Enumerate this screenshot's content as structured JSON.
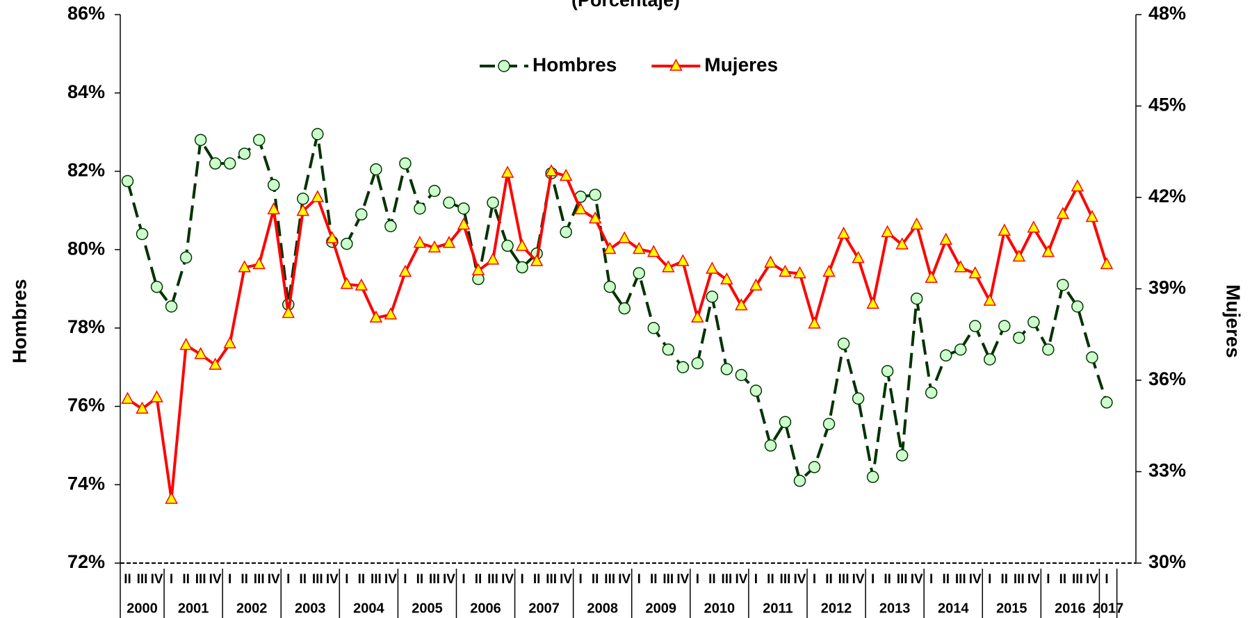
{
  "chart_data": {
    "type": "line",
    "subtitle": "(Porcentaje)",
    "y_label": "Hombres",
    "y2_label": "Mujeres",
    "category_groups": [
      {
        "label": "2000",
        "quarters": [
          "II",
          "III",
          "IV"
        ]
      },
      {
        "label": "2001",
        "quarters": [
          "I",
          "II",
          "III",
          "IV"
        ]
      },
      {
        "label": "2002",
        "quarters": [
          "I",
          "II",
          "III",
          "IV"
        ]
      },
      {
        "label": "2003",
        "quarters": [
          "I",
          "II",
          "III",
          "IV"
        ]
      },
      {
        "label": "2004",
        "quarters": [
          "I",
          "II",
          "III",
          "IV"
        ]
      },
      {
        "label": "2005",
        "quarters": [
          "I",
          "II",
          "III",
          "IV"
        ]
      },
      {
        "label": "2006",
        "quarters": [
          "I",
          "II",
          "III",
          "IV"
        ]
      },
      {
        "label": "2007",
        "quarters": [
          "I",
          "II",
          "III",
          "IV"
        ]
      },
      {
        "label": "2008",
        "quarters": [
          "I",
          "II",
          "III",
          "IV"
        ]
      },
      {
        "label": "2009",
        "quarters": [
          "I",
          "II",
          "III",
          "IV"
        ]
      },
      {
        "label": "2010",
        "quarters": [
          "I",
          "II",
          "III",
          "IV"
        ]
      },
      {
        "label": "2011",
        "quarters": [
          "I",
          "II",
          "III",
          "IV"
        ]
      },
      {
        "label": "2012",
        "quarters": [
          "I",
          "II",
          "III",
          "IV"
        ]
      },
      {
        "label": "2013",
        "quarters": [
          "I",
          "II",
          "III",
          "IV"
        ]
      },
      {
        "label": "2014",
        "quarters": [
          "I",
          "II",
          "III",
          "IV"
        ]
      },
      {
        "label": "2015",
        "quarters": [
          "I",
          "II",
          "III",
          "IV"
        ]
      },
      {
        "label": "2016",
        "quarters": [
          "I",
          "II",
          "III",
          "IV"
        ]
      },
      {
        "label": "2017",
        "quarters": [
          "I"
        ]
      }
    ],
    "series": [
      {
        "name": "Hombres",
        "color": "#003300",
        "marker_color": "#ccffcc",
        "dashed": true,
        "axis": "y",
        "values": [
          81.75,
          80.4,
          79.05,
          78.55,
          79.8,
          82.8,
          82.2,
          82.2,
          82.45,
          82.8,
          81.65,
          78.6,
          81.3,
          82.95,
          80.2,
          80.15,
          80.9,
          82.05,
          80.6,
          82.2,
          81.05,
          81.5,
          81.2,
          81.05,
          79.25,
          81.2,
          80.1,
          79.55,
          79.9,
          81.95,
          80.45,
          81.35,
          81.4,
          79.05,
          78.5,
          79.4,
          78.0,
          77.45,
          77.0,
          77.1,
          78.8,
          76.95,
          76.8,
          76.4,
          75.0,
          75.6,
          74.1,
          74.45,
          75.55,
          77.6,
          76.2,
          74.2,
          76.9,
          74.75,
          78.75,
          76.35,
          77.3,
          77.45,
          78.05,
          77.2,
          78.05,
          77.75,
          78.15,
          77.45,
          79.1,
          78.55,
          77.25,
          76.1
        ]
      },
      {
        "name": "Mujeres",
        "color": "#ff0000",
        "marker_color": "#ffff00",
        "dashed": false,
        "axis": "y2",
        "values": [
          35.38,
          35.06,
          35.43,
          32.1,
          37.15,
          36.85,
          36.5,
          37.2,
          39.7,
          39.8,
          41.6,
          38.2,
          41.55,
          42.0,
          40.65,
          39.15,
          39.1,
          38.05,
          38.15,
          39.55,
          40.5,
          40.35,
          40.5,
          41.1,
          39.6,
          39.95,
          42.8,
          40.4,
          39.9,
          42.85,
          42.7,
          41.6,
          41.3,
          40.3,
          40.65,
          40.3,
          40.2,
          39.7,
          39.9,
          38.05,
          39.65,
          39.3,
          38.45,
          39.1,
          39.85,
          39.55,
          39.5,
          37.85,
          39.55,
          40.8,
          40.0,
          38.5,
          40.85,
          40.45,
          41.1,
          39.35,
          40.6,
          39.7,
          39.5,
          38.6,
          40.9,
          40.05,
          41.0,
          40.2,
          41.45,
          42.35,
          41.35,
          39.8
        ]
      }
    ],
    "ylim": [
      72,
      86
    ],
    "yticks": [
      {
        "value": 72,
        "label": "72%"
      },
      {
        "value": 74,
        "label": "74%"
      },
      {
        "value": 76,
        "label": "76%"
      },
      {
        "value": 78,
        "label": "78%"
      },
      {
        "value": 80,
        "label": "80%"
      },
      {
        "value": 82,
        "label": "82%"
      },
      {
        "value": 84,
        "label": "84%"
      },
      {
        "value": 86,
        "label": "86%"
      }
    ],
    "y2lim": [
      30,
      48
    ],
    "y2ticks": [
      {
        "value": 30,
        "label": "30%"
      },
      {
        "value": 33,
        "label": "33%"
      },
      {
        "value": 36,
        "label": "36%"
      },
      {
        "value": 39,
        "label": "39%"
      },
      {
        "value": 42,
        "label": "42%"
      },
      {
        "value": 45,
        "label": "45%"
      },
      {
        "value": 48,
        "label": "48%"
      }
    ],
    "legend": "top"
  }
}
